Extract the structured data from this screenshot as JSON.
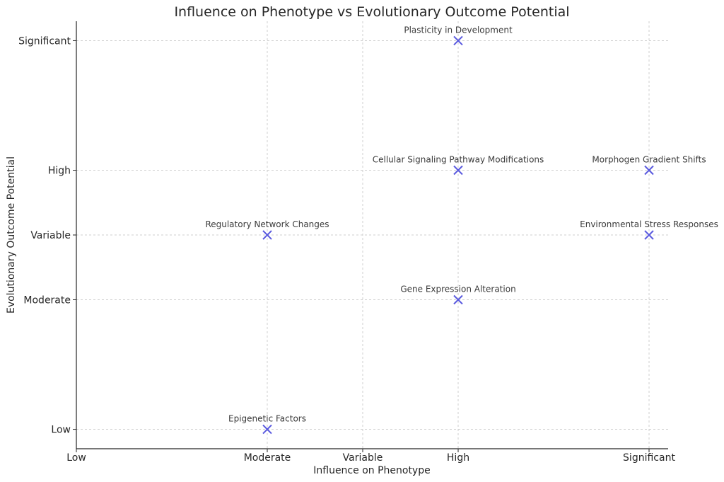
{
  "chart_data": {
    "type": "scatter",
    "title": "Influence on Phenotype vs Evolutionary Outcome Potential",
    "xlabel": "Influence on Phenotype",
    "ylabel": "Evolutionary Outcome Potential",
    "x_ticks": [
      {
        "label": "Low",
        "value": 0
      },
      {
        "label": "Moderate",
        "value": 1
      },
      {
        "label": "Variable",
        "value": 1.5
      },
      {
        "label": "High",
        "value": 2
      },
      {
        "label": "Significant",
        "value": 3
      }
    ],
    "y_ticks": [
      {
        "label": "Low",
        "value": 0
      },
      {
        "label": "Moderate",
        "value": 1
      },
      {
        "label": "Variable",
        "value": 1.5
      },
      {
        "label": "High",
        "value": 2
      },
      {
        "label": "Significant",
        "value": 3
      }
    ],
    "xlim": [
      0,
      3.1
    ],
    "ylim": [
      -0.15,
      3.15
    ],
    "grid": true,
    "marker": "x",
    "color": "#5a5adf",
    "points": [
      {
        "label": "Plasticity in Development",
        "x": 2,
        "y": 3
      },
      {
        "label": "Cellular Signaling Pathway Modifications",
        "x": 2,
        "y": 2
      },
      {
        "label": "Morphogen Gradient Shifts",
        "x": 3,
        "y": 2
      },
      {
        "label": "Regulatory Network Changes",
        "x": 1,
        "y": 1.5
      },
      {
        "label": "Environmental Stress Responses",
        "x": 3,
        "y": 1.5
      },
      {
        "label": "Gene Expression Alteration",
        "x": 2,
        "y": 1
      },
      {
        "label": "Epigenetic Factors",
        "x": 1,
        "y": 0
      }
    ]
  }
}
